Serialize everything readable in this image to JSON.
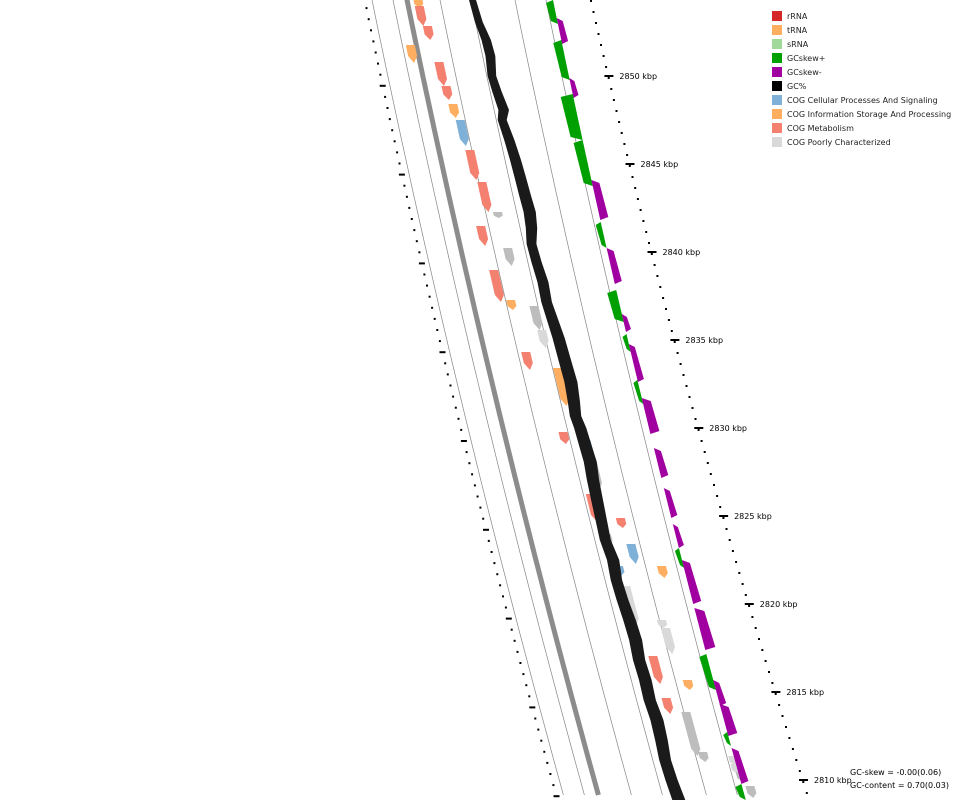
{
  "legend": [
    {
      "label": "rRNA",
      "color": "#d62728",
      "icon": "swatch"
    },
    {
      "label": "tRNA",
      "color": "#fdae61",
      "icon": "swatch"
    },
    {
      "label": "sRNA",
      "color": "#a1d99b",
      "icon": "swatch"
    },
    {
      "label": "GCskew+",
      "color": "#00a000",
      "icon": "swatch"
    },
    {
      "label": "GCskew-",
      "color": "#a000a0",
      "icon": "swatch"
    },
    {
      "label": "GC%",
      "color": "#000000",
      "icon": "swatch"
    },
    {
      "label": "COG Cellular Processes And Signaling",
      "color": "#7fb0d8",
      "icon": "swatch"
    },
    {
      "label": "COG Information Storage And Processing",
      "color": "#fdae61",
      "icon": "swatch"
    },
    {
      "label": "COG Metabolism",
      "color": "#f4806f",
      "icon": "swatch"
    },
    {
      "label": "COG Poorly Characterized",
      "color": "#d9d9d9",
      "icon": "swatch"
    }
  ],
  "stats": {
    "gc_skew": "GC-skew = -0.00(0.06)",
    "gc_content": "GC-content = 0.70(0.03)"
  },
  "ticks": [
    {
      "label": "2850 kbp",
      "kbp": 2850
    },
    {
      "label": "2845 kbp",
      "kbp": 2845
    },
    {
      "label": "2840 kbp",
      "kbp": 2840
    },
    {
      "label": "2835 kbp",
      "kbp": 2835
    },
    {
      "label": "2830 kbp",
      "kbp": 2830
    },
    {
      "label": "2825 kbp",
      "kbp": 2825
    },
    {
      "label": "2820 kbp",
      "kbp": 2820
    },
    {
      "label": "2815 kbp",
      "kbp": 2815
    },
    {
      "label": "2810 kbp",
      "kbp": 2810
    }
  ],
  "colors": {
    "backbone": "#8c8c8c",
    "gc_content": "#1a1a1a",
    "skew_pos": "#00a000",
    "skew_neg": "#a000a0",
    "rule": "#888888"
  }
}
